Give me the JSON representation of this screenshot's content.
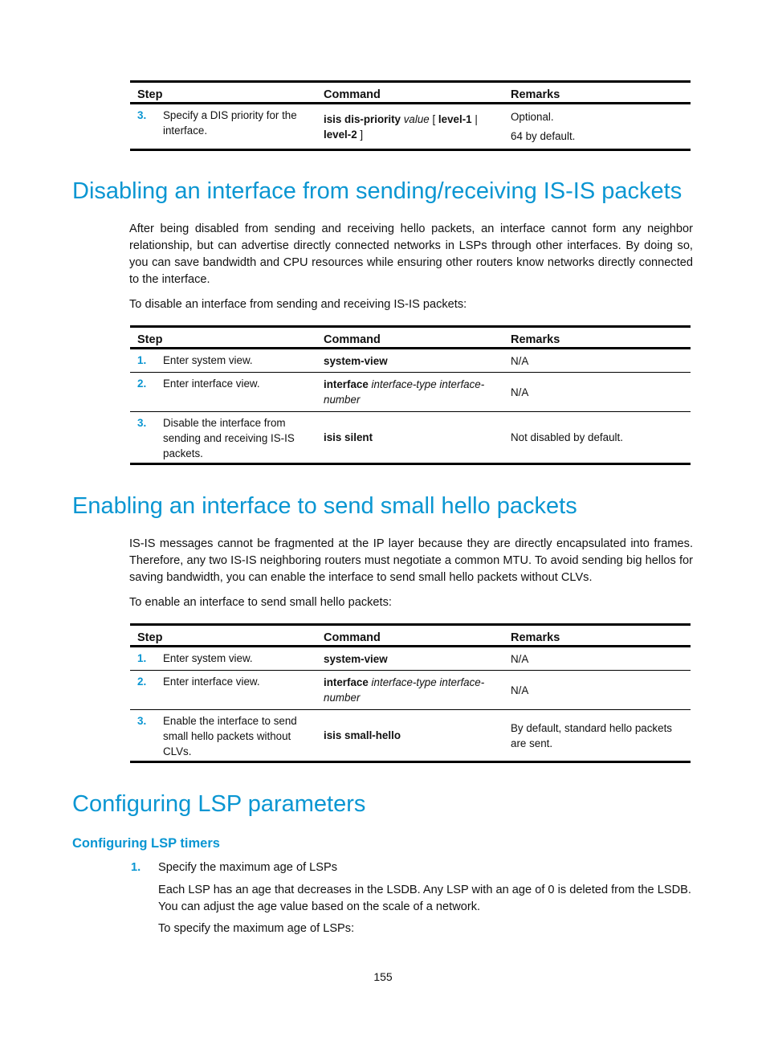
{
  "tables": [
    {
      "headers": [
        "Step",
        "Command",
        "Remarks"
      ],
      "rows": [
        {
          "num": "3.",
          "step": "Specify a DIS priority for the interface.",
          "command": [
            {
              "t": "isis dis-priority",
              "s": "b"
            },
            {
              "t": " value",
              "s": "i"
            },
            {
              "t": " [ ",
              "s": "n"
            },
            {
              "t": "level-1",
              "s": "b"
            },
            {
              "t": " | ",
              "s": "n"
            },
            {
              "t": "level-2",
              "s": "b"
            },
            {
              "t": " ]",
              "s": "n"
            }
          ],
          "remarks": [
            "Optional.",
            "64 by default."
          ]
        }
      ]
    },
    {
      "headers": [
        "Step",
        "Command",
        "Remarks"
      ],
      "rows": [
        {
          "num": "1.",
          "step": "Enter system view.",
          "command": [
            {
              "t": "system-view",
              "s": "b"
            }
          ],
          "remarks": [
            "N/A"
          ]
        },
        {
          "num": "2.",
          "step": "Enter interface view.",
          "command": [
            {
              "t": "interface",
              "s": "b"
            },
            {
              "t": " interface-type interface-number",
              "s": "i"
            }
          ],
          "remarks": [
            "N/A"
          ]
        },
        {
          "num": "3.",
          "step": "Disable the interface from sending and receiving IS-IS packets.",
          "command": [
            {
              "t": "isis silent",
              "s": "b"
            }
          ],
          "remarks": [
            "Not disabled by default."
          ]
        }
      ]
    },
    {
      "headers": [
        "Step",
        "Command",
        "Remarks"
      ],
      "rows": [
        {
          "num": "1.",
          "step": "Enter system view.",
          "command": [
            {
              "t": "system-view",
              "s": "b"
            }
          ],
          "remarks": [
            "N/A"
          ]
        },
        {
          "num": "2.",
          "step": "Enter interface view.",
          "command": [
            {
              "t": "interface",
              "s": "b"
            },
            {
              "t": " interface-type interface-number",
              "s": "i"
            }
          ],
          "remarks": [
            "N/A"
          ]
        },
        {
          "num": "3.",
          "step": "Enable the interface to send small hello packets without CLVs.",
          "command": [
            {
              "t": "isis small-hello",
              "s": "b"
            }
          ],
          "remarks": [
            "By default, standard hello packets are sent."
          ]
        }
      ]
    }
  ],
  "section1": {
    "title": "Disabling an interface from sending/receiving IS-IS packets",
    "para1": "After being disabled from sending and receiving hello packets, an interface cannot form any neighbor relationship, but can advertise directly connected networks in LSPs through other interfaces. By doing so, you can save bandwidth and CPU resources while ensuring other routers know networks directly connected to the interface.",
    "para2": "To disable an interface from sending and receiving IS-IS packets:"
  },
  "section2": {
    "title": "Enabling an interface to send small hello packets",
    "para1": "IS-IS messages cannot be fragmented at the IP layer because they are directly encapsulated into frames. Therefore, any two IS-IS neighboring routers must negotiate a common MTU. To avoid sending big hellos for saving bandwidth, you can enable the interface to send small hello packets without CLVs.",
    "para2": "To enable an interface to send small hello packets:"
  },
  "section3": {
    "title": "Configuring LSP parameters",
    "subtitle": "Configuring LSP timers",
    "item_num": "1.",
    "item_title": "Specify the maximum age of LSPs",
    "para1": "Each LSP has an age that decreases in the LSDB. Any LSP with an age of 0 is deleted from the LSDB. You can adjust the age value based on the scale of a network.",
    "para2": "To specify the maximum age of LSPs:"
  },
  "page_number": "155",
  "colors": {
    "accent": "#0a96d2",
    "text": "#111111"
  }
}
